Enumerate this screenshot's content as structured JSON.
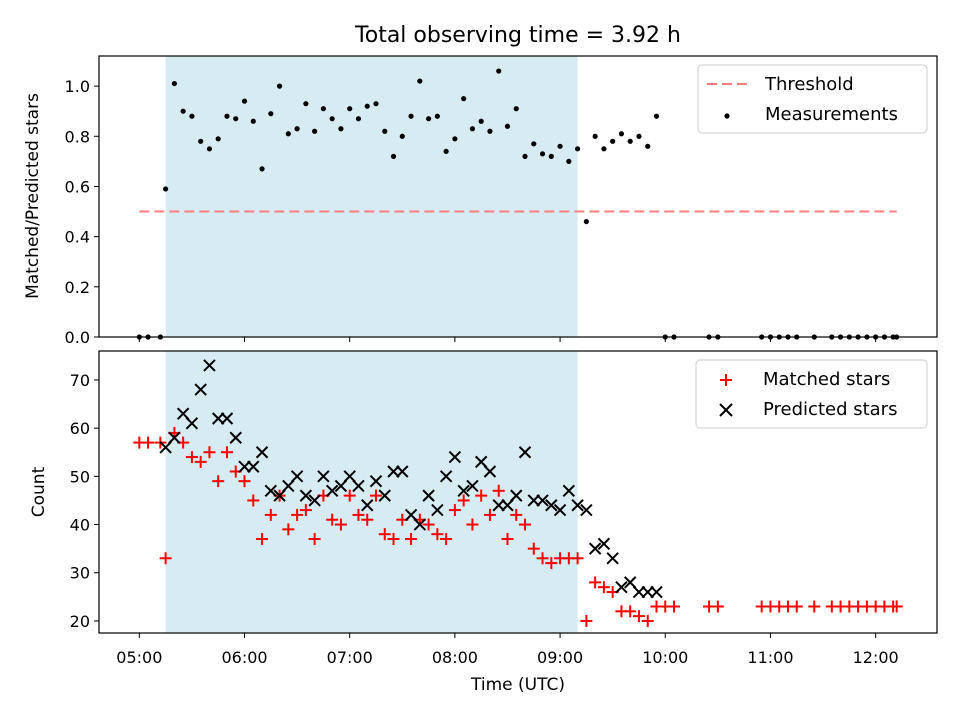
{
  "chart_data": {
    "title": "Total observing time = 3.92 h",
    "xlabel": "Time (UTC)",
    "x_ticks": [
      "05:00",
      "06:00",
      "07:00",
      "08:00",
      "09:00",
      "10:00",
      "11:00",
      "12:00"
    ],
    "xlim": [
      "04:37",
      "12:35"
    ],
    "shaded_interval": [
      "05:15",
      "09:10"
    ],
    "shade_color": "#add8e6",
    "panels": [
      {
        "type": "scatter",
        "ylabel": "Matched/Predicted stars",
        "ylim": [
          0,
          1.12
        ],
        "y_ticks": [
          0.0,
          0.2,
          0.4,
          0.6,
          0.8,
          1.0
        ],
        "legend_position": "top-right",
        "series": [
          {
            "name": "Threshold",
            "type": "line",
            "style": "dashed",
            "color": "#ff7f7f",
            "x": [
              "05:00",
              "12:12"
            ],
            "y": [
              0.5,
              0.5
            ]
          },
          {
            "name": "Measurements",
            "type": "scatter",
            "color": "#000000",
            "x": [
              "05:00",
              "05:05",
              "05:12",
              "05:15",
              "05:20",
              "05:25",
              "05:30",
              "05:35",
              "05:40",
              "05:45",
              "05:50",
              "05:55",
              "06:00",
              "06:05",
              "06:10",
              "06:15",
              "06:20",
              "06:25",
              "06:30",
              "06:35",
              "06:40",
              "06:45",
              "06:50",
              "06:55",
              "07:00",
              "07:05",
              "07:10",
              "07:15",
              "07:20",
              "07:25",
              "07:30",
              "07:35",
              "07:40",
              "07:45",
              "07:50",
              "07:55",
              "08:00",
              "08:05",
              "08:10",
              "08:15",
              "08:20",
              "08:25",
              "08:30",
              "08:35",
              "08:40",
              "08:45",
              "08:50",
              "08:55",
              "09:00",
              "09:05",
              "09:10",
              "09:15",
              "09:20",
              "09:25",
              "09:30",
              "09:35",
              "09:40",
              "09:45",
              "09:50",
              "09:55",
              "10:00",
              "10:05",
              "10:25",
              "10:30",
              "10:55",
              "11:00",
              "11:05",
              "11:10",
              "11:15",
              "11:25",
              "11:35",
              "11:40",
              "11:45",
              "11:50",
              "11:55",
              "12:00",
              "12:05",
              "12:10",
              "12:12"
            ],
            "y": [
              0,
              0,
              0,
              0.59,
              1.01,
              0.9,
              0.88,
              0.78,
              0.75,
              0.79,
              0.88,
              0.87,
              0.94,
              0.86,
              0.67,
              0.89,
              1.0,
              0.81,
              0.83,
              0.93,
              0.82,
              0.91,
              0.87,
              0.83,
              0.91,
              0.87,
              0.92,
              0.93,
              0.82,
              0.72,
              0.8,
              0.88,
              1.02,
              0.87,
              0.88,
              0.74,
              0.79,
              0.95,
              0.83,
              0.86,
              0.82,
              1.06,
              0.84,
              0.91,
              0.72,
              0.77,
              0.73,
              0.72,
              0.76,
              0.7,
              0.75,
              0.46,
              0.8,
              0.75,
              0.78,
              0.81,
              0.78,
              0.8,
              0.76,
              0.88,
              0,
              0,
              0,
              0,
              0,
              0,
              0,
              0,
              0,
              0,
              0,
              0,
              0,
              0,
              0,
              0,
              0,
              0,
              0
            ]
          }
        ]
      },
      {
        "type": "scatter",
        "ylabel": "Count",
        "ylim": [
          17.5,
          76
        ],
        "y_ticks": [
          20,
          30,
          40,
          50,
          60,
          70
        ],
        "legend_position": "top-right",
        "series": [
          {
            "name": "Matched stars",
            "marker": "+",
            "color": "#ff0000",
            "x": [
              "05:00",
              "05:05",
              "05:12",
              "05:15",
              "05:20",
              "05:25",
              "05:30",
              "05:35",
              "05:40",
              "05:45",
              "05:50",
              "05:55",
              "06:00",
              "06:05",
              "06:10",
              "06:15",
              "06:20",
              "06:25",
              "06:30",
              "06:35",
              "06:40",
              "06:45",
              "06:50",
              "06:55",
              "07:00",
              "07:05",
              "07:10",
              "07:15",
              "07:20",
              "07:25",
              "07:30",
              "07:35",
              "07:40",
              "07:45",
              "07:50",
              "07:55",
              "08:00",
              "08:05",
              "08:10",
              "08:15",
              "08:20",
              "08:25",
              "08:30",
              "08:35",
              "08:40",
              "08:45",
              "08:50",
              "08:55",
              "09:00",
              "09:05",
              "09:10",
              "09:15",
              "09:20",
              "09:25",
              "09:30",
              "09:35",
              "09:40",
              "09:45",
              "09:50",
              "09:55",
              "10:00",
              "10:05",
              "10:25",
              "10:30",
              "10:55",
              "11:00",
              "11:05",
              "11:10",
              "11:15",
              "11:25",
              "11:35",
              "11:40",
              "11:45",
              "11:50",
              "11:55",
              "12:00",
              "12:05",
              "12:10",
              "12:12"
            ],
            "y": [
              57,
              57,
              57,
              33,
              59,
              57,
              54,
              53,
              55,
              49,
              55,
              51,
              49,
              45,
              37,
              42,
              46,
              39,
              42,
              43,
              37,
              46,
              41,
              40,
              46,
              42,
              41,
              46,
              38,
              37,
              41,
              37,
              41,
              40,
              38,
              37,
              43,
              45,
              40,
              46,
              42,
              47,
              37,
              42,
              40,
              35,
              33,
              32,
              33,
              33,
              33,
              20,
              28,
              27,
              26,
              22,
              22,
              21,
              20,
              23,
              23,
              23,
              23,
              23,
              23,
              23,
              23,
              23,
              23,
              23,
              23,
              23,
              23,
              23,
              23,
              23,
              23,
              23,
              23
            ]
          },
          {
            "name": "Predicted stars",
            "marker": "x",
            "color": "#000000",
            "x": [
              "05:15",
              "05:20",
              "05:25",
              "05:30",
              "05:35",
              "05:40",
              "05:45",
              "05:50",
              "05:55",
              "06:00",
              "06:05",
              "06:10",
              "06:15",
              "06:20",
              "06:25",
              "06:30",
              "06:35",
              "06:40",
              "06:45",
              "06:50",
              "06:55",
              "07:00",
              "07:05",
              "07:10",
              "07:15",
              "07:20",
              "07:25",
              "07:30",
              "07:35",
              "07:40",
              "07:45",
              "07:50",
              "07:55",
              "08:00",
              "08:05",
              "08:10",
              "08:15",
              "08:20",
              "08:25",
              "08:30",
              "08:35",
              "08:40",
              "08:45",
              "08:50",
              "08:55",
              "09:00",
              "09:05",
              "09:10",
              "09:15",
              "09:20",
              "09:25",
              "09:30",
              "09:35",
              "09:40",
              "09:45",
              "09:50",
              "09:55"
            ],
            "y": [
              56,
              58,
              63,
              61,
              68,
              73,
              62,
              62,
              58,
              52,
              52,
              55,
              47,
              46,
              48,
              50,
              46,
              45,
              50,
              47,
              48,
              50,
              48,
              44,
              49,
              46,
              51,
              51,
              42,
              40,
              46,
              43,
              50,
              54,
              47,
              48,
              53,
              51,
              44,
              44,
              46,
              55,
              45,
              45,
              44,
              43,
              47,
              44,
              43,
              35,
              36,
              33,
              27,
              28,
              26,
              26,
              26
            ]
          }
        ]
      }
    ]
  }
}
